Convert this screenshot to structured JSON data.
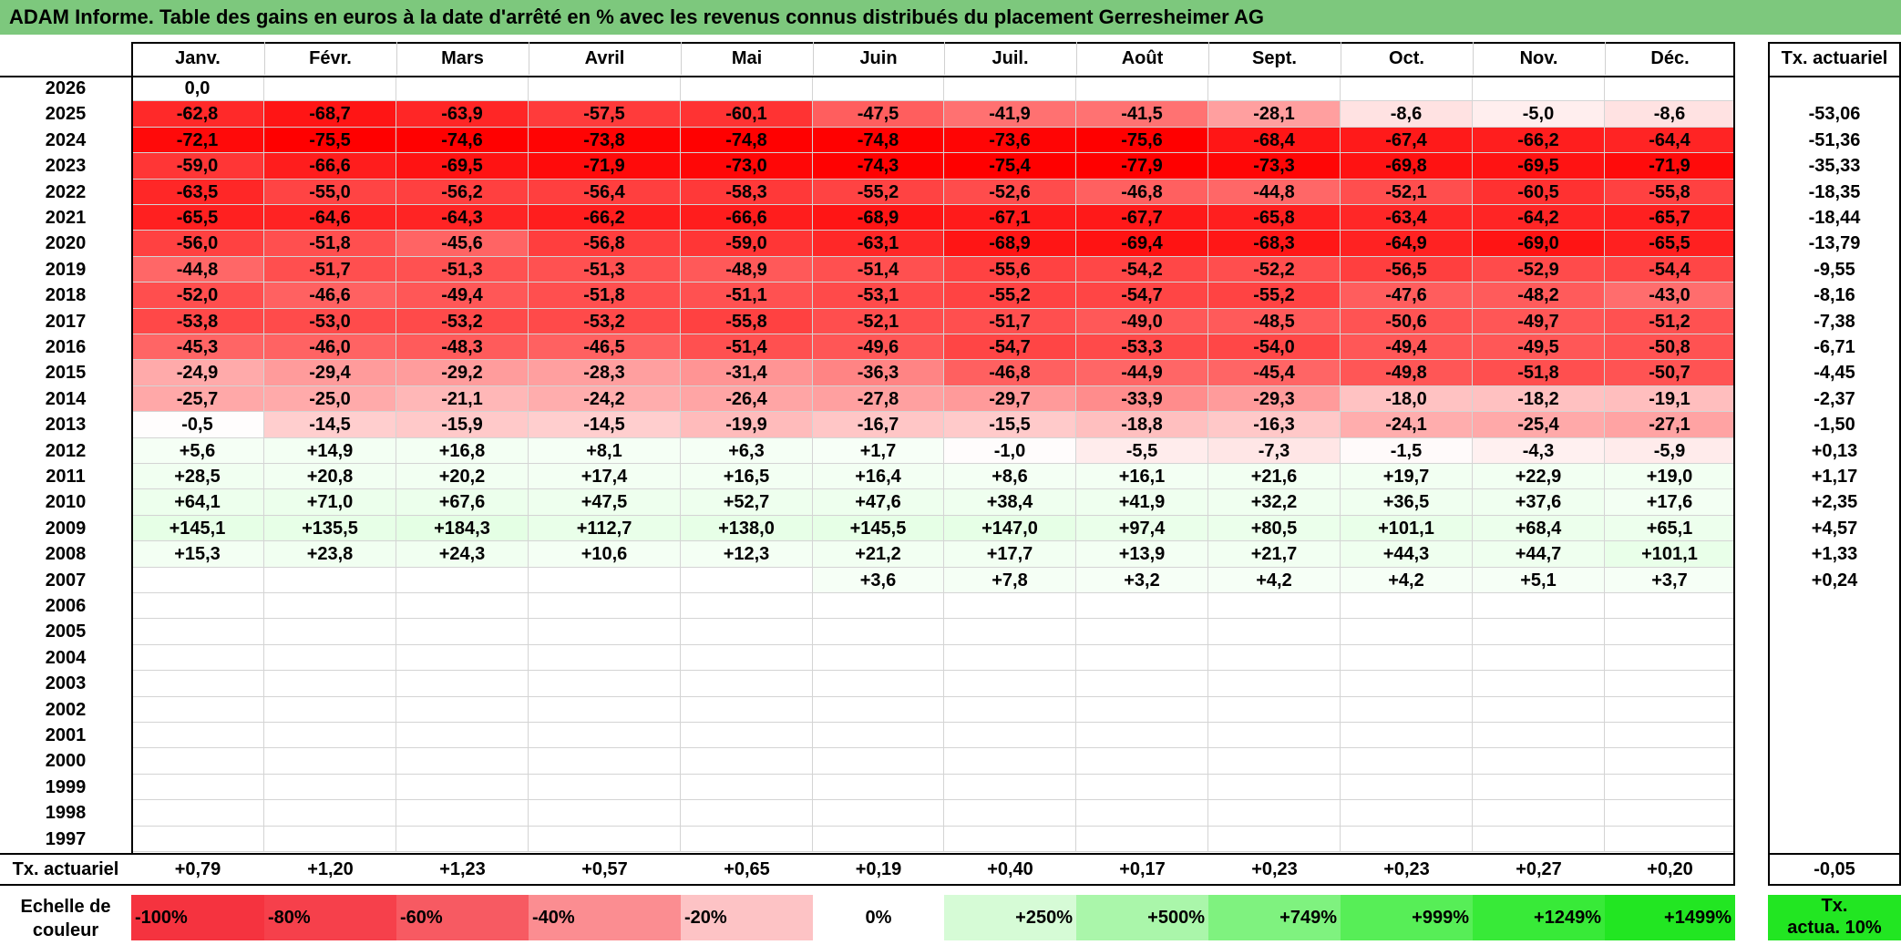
{
  "title": "ADAM Informe. Table des gains en euros à la date d'arrêté en % avec les revenus connus distribués du placement Gerresheimer AG",
  "months": [
    "Janv.",
    "Févr.",
    "Mars",
    "Avril",
    "Mai",
    "Juin",
    "Juil.",
    "Août",
    "Sept.",
    "Oct.",
    "Nov.",
    "Déc."
  ],
  "annual_header": "Tx. actuariel",
  "rows": [
    {
      "year": "2026",
      "values": [
        "0,0",
        "",
        "",
        "",
        "",
        "",
        "",
        "",
        "",
        "",
        "",
        ""
      ],
      "annual": ""
    },
    {
      "year": "2025",
      "values": [
        "-62,8",
        "-68,7",
        "-63,9",
        "-57,5",
        "-60,1",
        "-47,5",
        "-41,9",
        "-41,5",
        "-28,1",
        "-8,6",
        "-5,0",
        "-8,6"
      ],
      "annual": "-53,06"
    },
    {
      "year": "2024",
      "values": [
        "-72,1",
        "-75,5",
        "-74,6",
        "-73,8",
        "-74,8",
        "-74,8",
        "-73,6",
        "-75,6",
        "-68,4",
        "-67,4",
        "-66,2",
        "-64,4"
      ],
      "annual": "-51,36"
    },
    {
      "year": "2023",
      "values": [
        "-59,0",
        "-66,6",
        "-69,5",
        "-71,9",
        "-73,0",
        "-74,3",
        "-75,4",
        "-77,9",
        "-73,3",
        "-69,8",
        "-69,5",
        "-71,9"
      ],
      "annual": "-35,33"
    },
    {
      "year": "2022",
      "values": [
        "-63,5",
        "-55,0",
        "-56,2",
        "-56,4",
        "-58,3",
        "-55,2",
        "-52,6",
        "-46,8",
        "-44,8",
        "-52,1",
        "-60,5",
        "-55,8"
      ],
      "annual": "-18,35"
    },
    {
      "year": "2021",
      "values": [
        "-65,5",
        "-64,6",
        "-64,3",
        "-66,2",
        "-66,6",
        "-68,9",
        "-67,1",
        "-67,7",
        "-65,8",
        "-63,4",
        "-64,2",
        "-65,7"
      ],
      "annual": "-18,44"
    },
    {
      "year": "2020",
      "values": [
        "-56,0",
        "-51,8",
        "-45,6",
        "-56,8",
        "-59,0",
        "-63,1",
        "-68,9",
        "-69,4",
        "-68,3",
        "-64,9",
        "-69,0",
        "-65,5"
      ],
      "annual": "-13,79"
    },
    {
      "year": "2019",
      "values": [
        "-44,8",
        "-51,7",
        "-51,3",
        "-51,3",
        "-48,9",
        "-51,4",
        "-55,6",
        "-54,2",
        "-52,2",
        "-56,5",
        "-52,9",
        "-54,4"
      ],
      "annual": "-9,55"
    },
    {
      "year": "2018",
      "values": [
        "-52,0",
        "-46,6",
        "-49,4",
        "-51,8",
        "-51,1",
        "-53,1",
        "-55,2",
        "-54,7",
        "-55,2",
        "-47,6",
        "-48,2",
        "-43,0"
      ],
      "annual": "-8,16"
    },
    {
      "year": "2017",
      "values": [
        "-53,8",
        "-53,0",
        "-53,2",
        "-53,2",
        "-55,8",
        "-52,1",
        "-51,7",
        "-49,0",
        "-48,5",
        "-50,6",
        "-49,7",
        "-51,2"
      ],
      "annual": "-7,38"
    },
    {
      "year": "2016",
      "values": [
        "-45,3",
        "-46,0",
        "-48,3",
        "-46,5",
        "-51,4",
        "-49,6",
        "-54,7",
        "-53,3",
        "-54,0",
        "-49,4",
        "-49,5",
        "-50,8"
      ],
      "annual": "-6,71"
    },
    {
      "year": "2015",
      "values": [
        "-24,9",
        "-29,4",
        "-29,2",
        "-28,3",
        "-31,4",
        "-36,3",
        "-46,8",
        "-44,9",
        "-45,4",
        "-49,8",
        "-51,8",
        "-50,7"
      ],
      "annual": "-4,45"
    },
    {
      "year": "2014",
      "values": [
        "-25,7",
        "-25,0",
        "-21,1",
        "-24,2",
        "-26,4",
        "-27,8",
        "-29,7",
        "-33,9",
        "-29,3",
        "-18,0",
        "-18,2",
        "-19,1"
      ],
      "annual": "-2,37"
    },
    {
      "year": "2013",
      "values": [
        "-0,5",
        "-14,5",
        "-15,9",
        "-14,5",
        "-19,9",
        "-16,7",
        "-15,5",
        "-18,8",
        "-16,3",
        "-24,1",
        "-25,4",
        "-27,1"
      ],
      "annual": "-1,50"
    },
    {
      "year": "2012",
      "values": [
        "+5,6",
        "+14,9",
        "+16,8",
        "+8,1",
        "+6,3",
        "+1,7",
        "-1,0",
        "-5,5",
        "-7,3",
        "-1,5",
        "-4,3",
        "-5,9"
      ],
      "annual": "+0,13"
    },
    {
      "year": "2011",
      "values": [
        "+28,5",
        "+20,8",
        "+20,2",
        "+17,4",
        "+16,5",
        "+16,4",
        "+8,6",
        "+16,1",
        "+21,6",
        "+19,7",
        "+22,9",
        "+19,0"
      ],
      "annual": "+1,17"
    },
    {
      "year": "2010",
      "values": [
        "+64,1",
        "+71,0",
        "+67,6",
        "+47,5",
        "+52,7",
        "+47,6",
        "+38,4",
        "+41,9",
        "+32,2",
        "+36,5",
        "+37,6",
        "+17,6"
      ],
      "annual": "+2,35"
    },
    {
      "year": "2009",
      "values": [
        "+145,1",
        "+135,5",
        "+184,3",
        "+112,7",
        "+138,0",
        "+145,5",
        "+147,0",
        "+97,4",
        "+80,5",
        "+101,1",
        "+68,4",
        "+65,1"
      ],
      "annual": "+4,57"
    },
    {
      "year": "2008",
      "values": [
        "+15,3",
        "+23,8",
        "+24,3",
        "+10,6",
        "+12,3",
        "+21,2",
        "+17,7",
        "+13,9",
        "+21,7",
        "+44,3",
        "+44,7",
        "+101,1"
      ],
      "annual": "+1,33"
    },
    {
      "year": "2007",
      "values": [
        "",
        "",
        "",
        "",
        "",
        "+3,6",
        "+7,8",
        "+3,2",
        "+4,2",
        "+4,2",
        "+5,1",
        "+3,7"
      ],
      "annual": "+0,24"
    },
    {
      "year": "2006",
      "values": [
        "",
        "",
        "",
        "",
        "",
        "",
        "",
        "",
        "",
        "",
        "",
        ""
      ],
      "annual": ""
    },
    {
      "year": "2005",
      "values": [
        "",
        "",
        "",
        "",
        "",
        "",
        "",
        "",
        "",
        "",
        "",
        ""
      ],
      "annual": ""
    },
    {
      "year": "2004",
      "values": [
        "",
        "",
        "",
        "",
        "",
        "",
        "",
        "",
        "",
        "",
        "",
        ""
      ],
      "annual": ""
    },
    {
      "year": "2003",
      "values": [
        "",
        "",
        "",
        "",
        "",
        "",
        "",
        "",
        "",
        "",
        "",
        ""
      ],
      "annual": ""
    },
    {
      "year": "2002",
      "values": [
        "",
        "",
        "",
        "",
        "",
        "",
        "",
        "",
        "",
        "",
        "",
        ""
      ],
      "annual": ""
    },
    {
      "year": "2001",
      "values": [
        "",
        "",
        "",
        "",
        "",
        "",
        "",
        "",
        "",
        "",
        "",
        ""
      ],
      "annual": ""
    },
    {
      "year": "2000",
      "values": [
        "",
        "",
        "",
        "",
        "",
        "",
        "",
        "",
        "",
        "",
        "",
        ""
      ],
      "annual": ""
    },
    {
      "year": "1999",
      "values": [
        "",
        "",
        "",
        "",
        "",
        "",
        "",
        "",
        "",
        "",
        "",
        ""
      ],
      "annual": ""
    },
    {
      "year": "1998",
      "values": [
        "",
        "",
        "",
        "",
        "",
        "",
        "",
        "",
        "",
        "",
        "",
        ""
      ],
      "annual": ""
    },
    {
      "year": "1997",
      "values": [
        "",
        "",
        "",
        "",
        "",
        "",
        "",
        "",
        "",
        "",
        "",
        ""
      ],
      "annual": ""
    }
  ],
  "footer": {
    "label": "Tx. actuariel",
    "values": [
      "+0,79",
      "+1,20",
      "+1,23",
      "+0,57",
      "+0,65",
      "+0,19",
      "+0,40",
      "+0,17",
      "+0,23",
      "+0,23",
      "+0,27",
      "+0,20"
    ],
    "annual": "-0,05"
  },
  "scale": {
    "label_line1": "Echelle de",
    "label_line2": "couleur",
    "items": [
      {
        "text": "-100%",
        "color": "#f5333f",
        "align": "left"
      },
      {
        "text": "-80%",
        "color": "#f6404b",
        "align": "left"
      },
      {
        "text": "-60%",
        "color": "#f75a62",
        "align": "left"
      },
      {
        "text": "-40%",
        "color": "#fb8d91",
        "align": "left"
      },
      {
        "text": "-20%",
        "color": "#fdc3c5",
        "align": "left"
      },
      {
        "text": "0%",
        "color": "#ffffff",
        "align": "center"
      },
      {
        "text": "+250%",
        "color": "#d6fbd6",
        "align": "right"
      },
      {
        "text": "+500%",
        "color": "#aaf6aa",
        "align": "right"
      },
      {
        "text": "+749%",
        "color": "#7ff27f",
        "align": "right"
      },
      {
        "text": "+999%",
        "color": "#57ee57",
        "align": "right"
      },
      {
        "text": "+1249%",
        "color": "#38ea38",
        "align": "right"
      },
      {
        "text": "+1499%",
        "color": "#22e622",
        "align": "right"
      }
    ],
    "annual_line1": "Tx.",
    "annual_line2": "actua. 10%",
    "annual_color": "#22e622"
  }
}
